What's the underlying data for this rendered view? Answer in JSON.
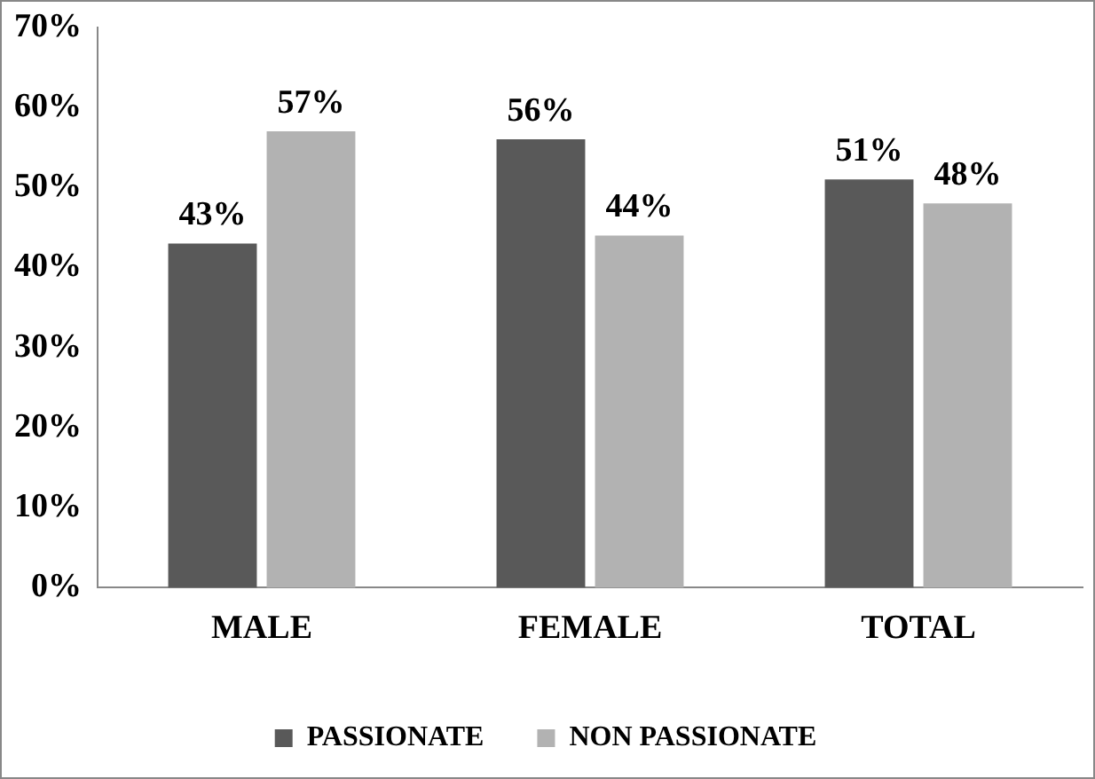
{
  "chart_data": {
    "type": "bar",
    "categories": [
      "MALE",
      "FEMALE",
      "TOTAL"
    ],
    "series": [
      {
        "name": "PASSIONATE",
        "color": "#595959",
        "values": [
          43,
          56,
          51
        ],
        "value_labels": [
          "43%",
          "56%",
          "51%"
        ]
      },
      {
        "name": "NON PASSIONATE",
        "color": "#b2b2b2",
        "values": [
          57,
          44,
          48
        ],
        "value_labels": [
          "57%",
          "44%",
          "48%"
        ]
      }
    ],
    "ylim": [
      0,
      70
    ],
    "yticks": [
      {
        "value": 0,
        "label": "0%"
      },
      {
        "value": 10,
        "label": "10%"
      },
      {
        "value": 20,
        "label": "20%"
      },
      {
        "value": 30,
        "label": "30%"
      },
      {
        "value": 40,
        "label": "40%"
      },
      {
        "value": 50,
        "label": "50%"
      },
      {
        "value": 60,
        "label": "60%"
      },
      {
        "value": 70,
        "label": "70%"
      }
    ],
    "grid": false,
    "legend": "bottom"
  }
}
